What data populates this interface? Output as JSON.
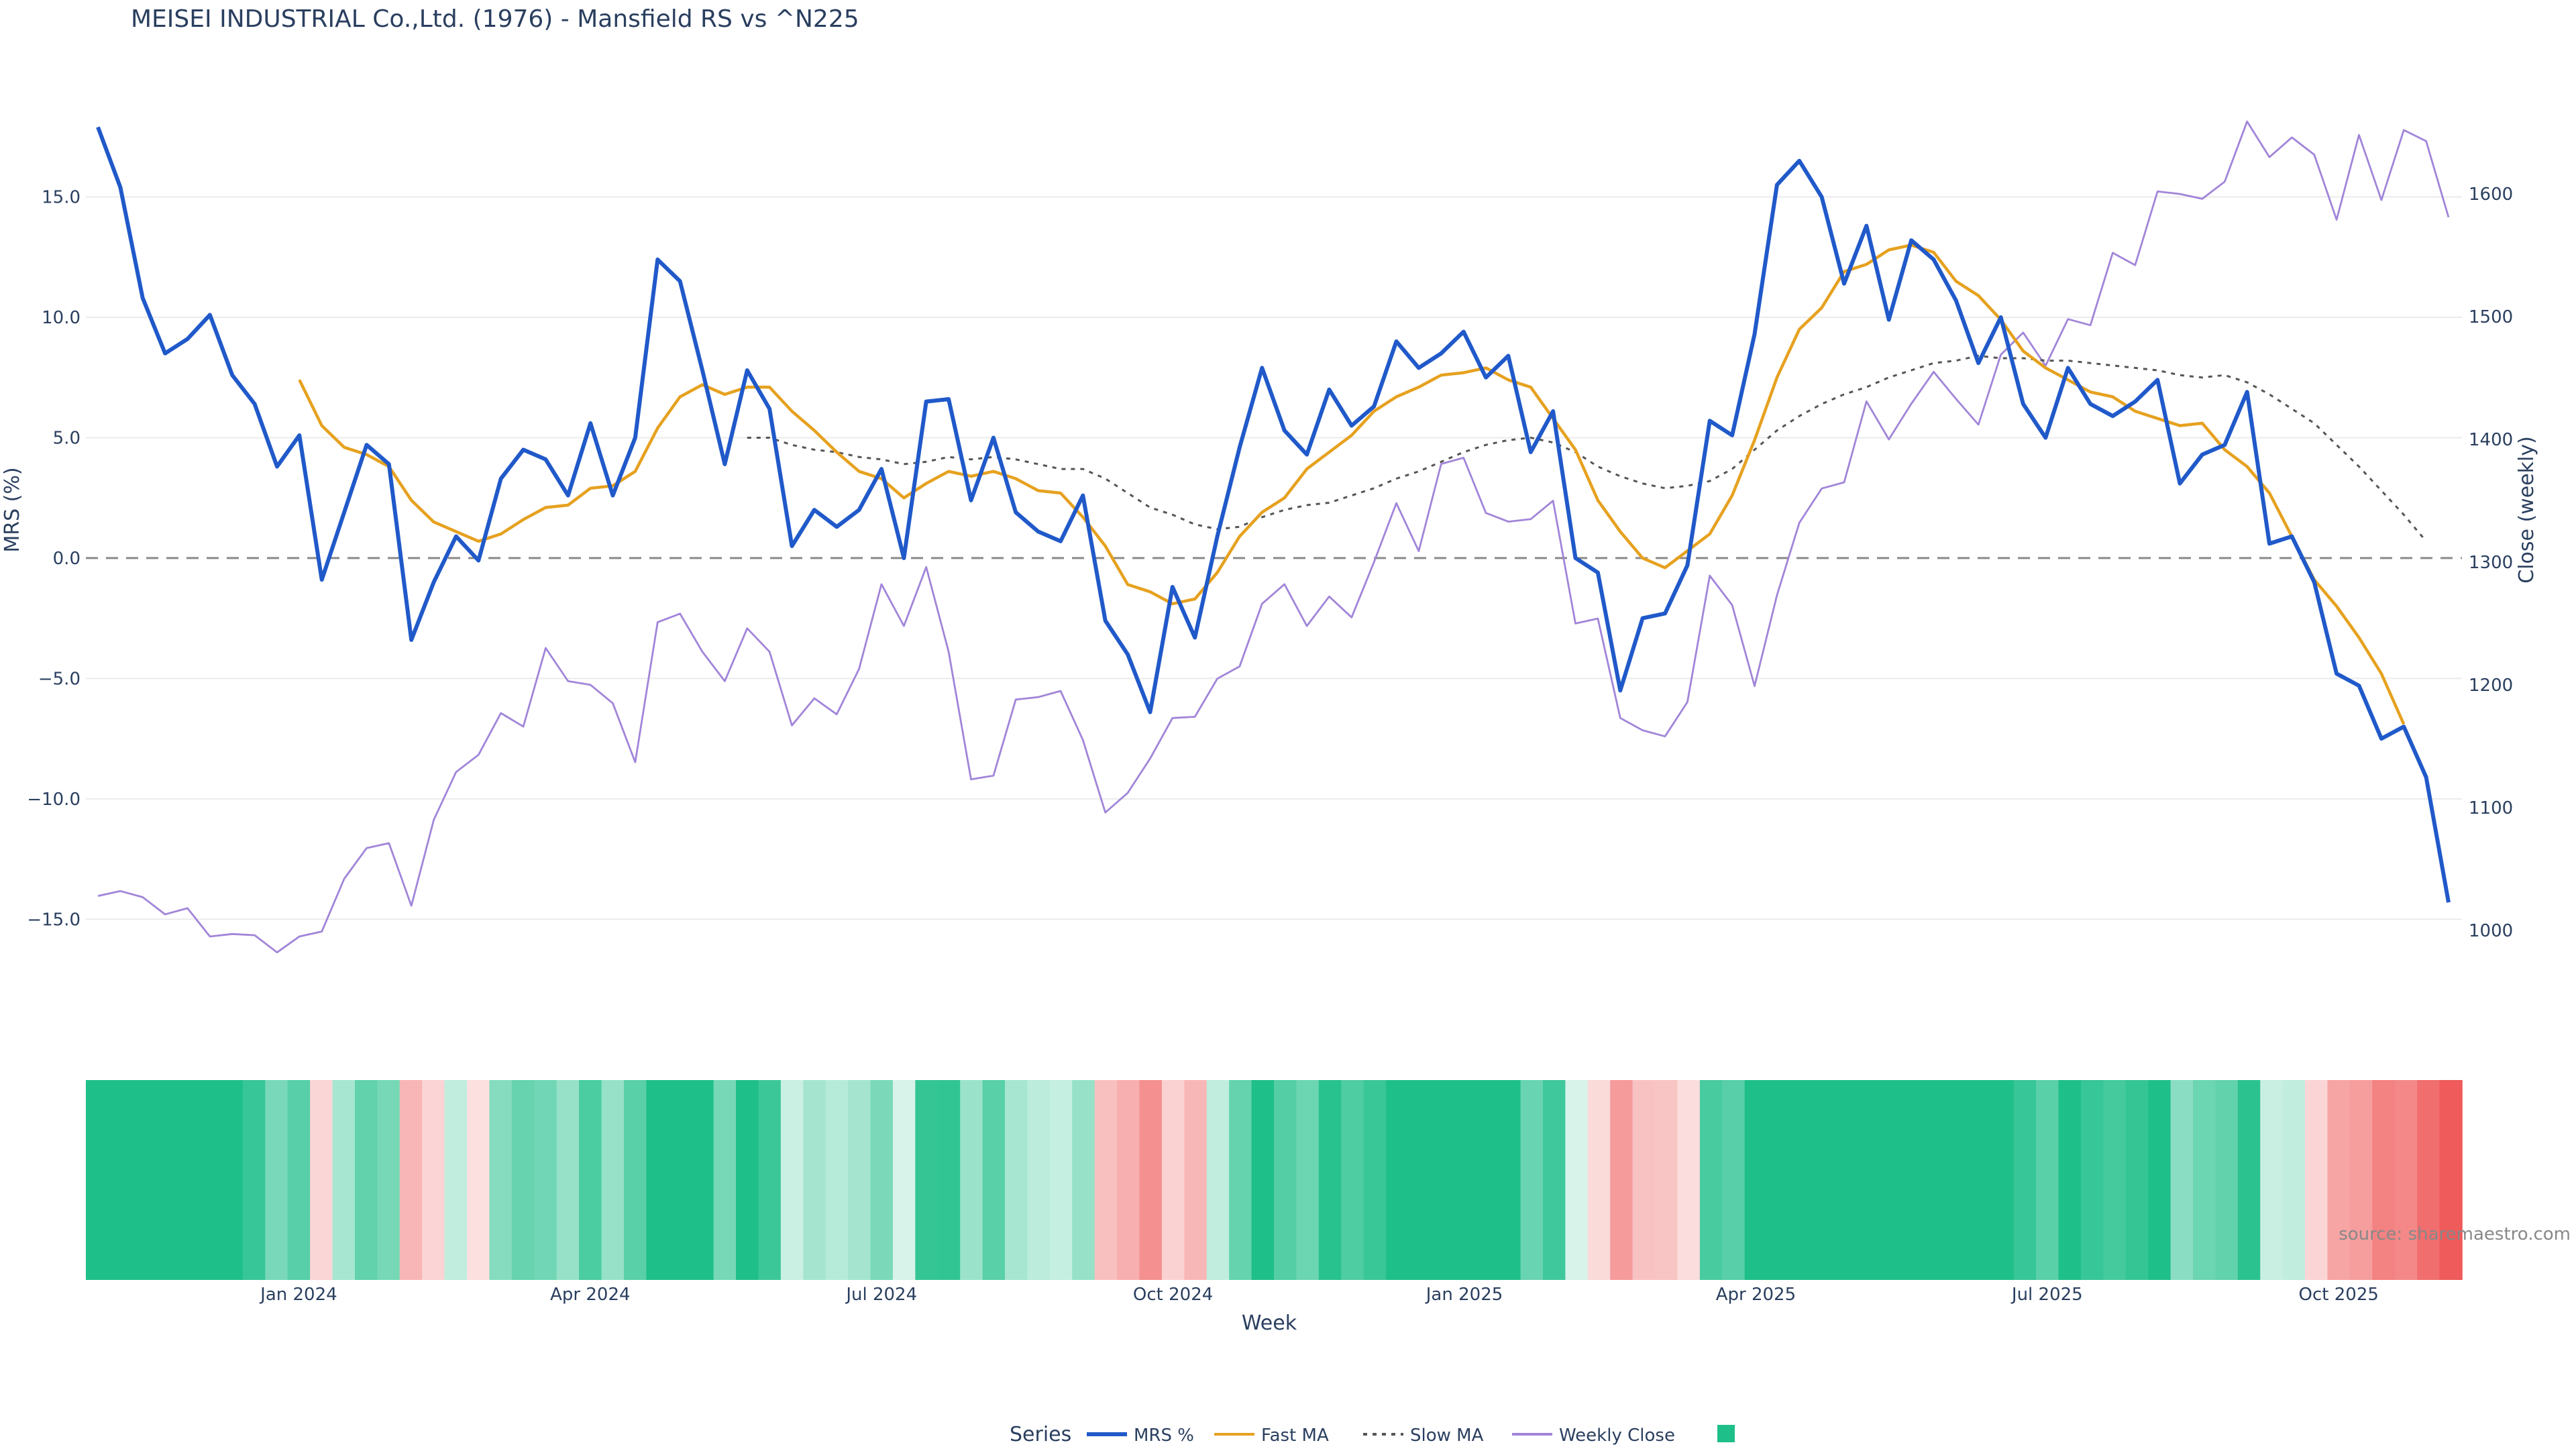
{
  "chart_data": {
    "type": "line",
    "title": "MEISEI INDUSTRIAL Co.,Ltd. (1976) - Mansfield RS vs ^N225",
    "xlabel": "Week",
    "ylabel_left": "MRS (%)",
    "ylabel_right": "Close (weekly)",
    "ylim_left": [
      -17.5,
      19.0
    ],
    "ylim_right": [
      960,
      1676
    ],
    "y_ticks_left": [
      -15,
      -10,
      -5,
      0,
      5,
      10,
      15
    ],
    "y_tick_labels_left": [
      "−15.0",
      "−10.0",
      "−5.0",
      "0.0",
      "5.0",
      "10.0",
      "15.0"
    ],
    "y_ticks_right": [
      1000,
      1100,
      1200,
      1300,
      1400,
      1500,
      1600
    ],
    "y_tick_labels_right": [
      "1000",
      "1100",
      "1200",
      "1300",
      "1400",
      "1500",
      "1600"
    ],
    "x_ticks": [
      {
        "week": 9,
        "label": "Jan 2024"
      },
      {
        "week": 22,
        "label": "Apr 2024"
      },
      {
        "week": 35,
        "label": "Jul 2024"
      },
      {
        "week": 48,
        "label": "Oct 2024"
      },
      {
        "week": 61,
        "label": "Jan 2025"
      },
      {
        "week": 74,
        "label": "Apr 2025"
      },
      {
        "week": 87,
        "label": "Jul 2025"
      },
      {
        "week": 100,
        "label": "Oct 2025"
      }
    ],
    "grid": true,
    "zero_line": 0,
    "legend_title": "Series",
    "legend_position": "bottom-center",
    "series": [
      {
        "name": "MRS %",
        "axis": "left",
        "color": "#2059c9",
        "start_week": 0,
        "values": [
          17.9,
          15.4,
          10.8,
          8.5,
          9.1,
          10.1,
          7.6,
          6.4,
          3.8,
          5.1,
          -0.9,
          1.9,
          4.7,
          3.9,
          -3.4,
          -1.0,
          0.9,
          -0.1,
          3.3,
          4.5,
          4.1,
          2.6,
          5.6,
          2.6,
          5.0,
          12.4,
          11.5,
          7.8,
          3.9,
          7.8,
          6.2,
          0.5,
          2.0,
          1.3,
          2.0,
          3.7,
          0.0,
          6.5,
          6.6,
          2.4,
          5.0,
          1.9,
          1.1,
          0.7,
          2.6,
          -2.6,
          -4.0,
          -6.4,
          -1.2,
          -3.3,
          0.9,
          4.6,
          7.9,
          5.3,
          4.3,
          7.0,
          5.5,
          6.3,
          9.0,
          7.9,
          8.5,
          9.4,
          7.5,
          8.4,
          4.4,
          6.1,
          0.0,
          -0.6,
          -5.5,
          -2.5,
          -2.3,
          -0.3,
          5.7,
          5.1,
          9.3,
          15.5,
          16.5,
          15.0,
          11.4,
          13.8,
          9.9,
          13.2,
          12.4,
          10.7,
          8.1,
          10.0,
          6.4,
          5.0,
          7.9,
          6.4,
          5.9,
          6.5,
          7.4,
          3.1,
          4.3,
          4.7,
          6.9,
          0.6,
          0.9,
          -1.0,
          -4.8,
          -5.3,
          -7.5,
          -7.0,
          -9.1,
          -14.3
        ]
      },
      {
        "name": "Fast MA",
        "axis": "left",
        "color": "#e6a11f",
        "start_week": 9,
        "values": [
          7.4,
          5.5,
          4.6,
          4.3,
          3.8,
          2.4,
          1.5,
          1.1,
          0.7,
          1.0,
          1.6,
          2.1,
          2.2,
          2.9,
          3.0,
          3.6,
          5.4,
          6.7,
          7.2,
          6.8,
          7.1,
          7.1,
          6.1,
          5.3,
          4.4,
          3.6,
          3.3,
          2.5,
          3.1,
          3.6,
          3.4,
          3.6,
          3.3,
          2.8,
          2.7,
          1.7,
          0.5,
          -1.1,
          -1.4,
          -1.9,
          -1.7,
          -0.6,
          0.9,
          1.9,
          2.5,
          3.7,
          4.4,
          5.1,
          6.1,
          6.7,
          7.1,
          7.6,
          7.7,
          7.9,
          7.4,
          7.1,
          5.8,
          4.5,
          2.4,
          1.1,
          0.0,
          -0.4,
          0.3,
          1.0,
          2.6,
          4.9,
          7.5,
          9.5,
          10.4,
          11.9,
          12.2,
          12.8,
          13.0,
          12.7,
          11.5,
          10.9,
          9.9,
          8.6,
          7.9,
          7.4,
          6.9,
          6.7,
          6.1,
          5.8,
          5.5,
          5.6,
          4.5,
          3.8,
          2.7,
          0.9,
          -0.9,
          -2.0,
          -3.3,
          -4.8,
          -6.9
        ]
      },
      {
        "name": "Slow MA",
        "axis": "left",
        "color": "#555555",
        "dashed": true,
        "start_week": 29,
        "values": [
          5.0,
          5.0,
          4.7,
          4.5,
          4.4,
          4.2,
          4.1,
          3.9,
          4.0,
          4.2,
          4.1,
          4.2,
          4.1,
          3.9,
          3.7,
          3.7,
          3.3,
          2.7,
          2.1,
          1.8,
          1.4,
          1.2,
          1.3,
          1.7,
          2.0,
          2.2,
          2.3,
          2.6,
          2.9,
          3.3,
          3.6,
          4.0,
          4.4,
          4.7,
          4.9,
          5.0,
          4.8,
          4.4,
          3.8,
          3.4,
          3.1,
          2.9,
          3.0,
          3.2,
          3.7,
          4.5,
          5.3,
          5.9,
          6.4,
          6.8,
          7.1,
          7.5,
          7.8,
          8.1,
          8.2,
          8.4,
          8.3,
          8.3,
          8.2,
          8.2,
          8.1,
          8.0,
          7.9,
          7.8,
          7.6,
          7.5,
          7.6,
          7.3,
          6.8,
          6.2,
          5.6,
          4.7,
          3.8,
          2.8,
          1.8,
          0.7
        ]
      },
      {
        "name": "Weekly Close",
        "axis": "right",
        "color": "#a185d9",
        "start_week": 0,
        "values": [
          1028,
          1032,
          1027,
          1013,
          1018,
          995,
          997,
          996,
          982,
          995,
          999,
          1042,
          1067,
          1071,
          1020,
          1090,
          1129,
          1143,
          1177,
          1166,
          1230,
          1203,
          1200,
          1185,
          1137,
          1251,
          1258,
          1227,
          1203,
          1246,
          1227,
          1167,
          1189,
          1176,
          1213,
          1282,
          1248,
          1296,
          1227,
          1123,
          1126,
          1188,
          1190,
          1195,
          1155,
          1096,
          1112,
          1140,
          1173,
          1174,
          1205,
          1215,
          1266,
          1282,
          1248,
          1272,
          1255,
          1300,
          1348,
          1309,
          1380,
          1385,
          1340,
          1333,
          1335,
          1350,
          1250,
          1254,
          1173,
          1163,
          1158,
          1186,
          1289,
          1265,
          1199,
          1273,
          1332,
          1360,
          1365,
          1431,
          1400,
          1429,
          1455,
          1433,
          1412,
          1469,
          1487,
          1460,
          1498,
          1493,
          1552,
          1542,
          1602,
          1600,
          1596,
          1610,
          1659,
          1630,
          1646,
          1632,
          1579,
          1648,
          1595,
          1652,
          1643,
          1581
        ]
      }
    ],
    "heatmap_strip": {
      "scale": "MRS %",
      "negative_color": "#ef5a5a",
      "positive_color": "#1fbf8a"
    }
  },
  "source_text": "source: sharemaestro.com"
}
